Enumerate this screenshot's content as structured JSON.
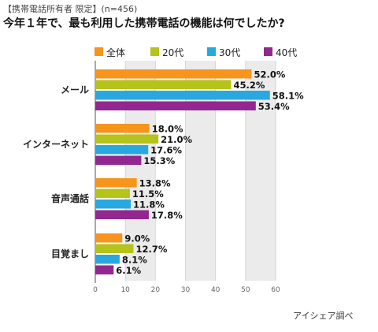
{
  "header": {
    "subtitle": "【携帯電話所有者 限定】(n=456)",
    "title": "今年１年で、最も利用した携帯電話の機能は何でしたか?"
  },
  "source": "アイシェア調べ",
  "colors": {
    "全体": "#f7941d",
    "20代": "#b5c31a",
    "30代": "#29a8e0",
    "40代": "#92278f",
    "band": "#ebebeb"
  },
  "chart_data": {
    "type": "bar",
    "orientation": "horizontal",
    "categories": [
      "メール",
      "インターネット",
      "音声通話",
      "目覚まし"
    ],
    "series": [
      {
        "name": "全体",
        "values": [
          52.0,
          18.0,
          13.8,
          9.0
        ]
      },
      {
        "name": "20代",
        "values": [
          45.2,
          21.0,
          11.5,
          12.7
        ]
      },
      {
        "name": "30代",
        "values": [
          58.1,
          17.6,
          11.8,
          8.1
        ]
      },
      {
        "name": "40代",
        "values": [
          53.4,
          15.3,
          17.8,
          6.1
        ]
      }
    ],
    "value_labels": [
      [
        "52.0%",
        "18.0%",
        "13.8%",
        "9.0%"
      ],
      [
        "45.2%",
        "21.0%",
        "11.5%",
        "12.7%"
      ],
      [
        "58.1%",
        "17.6%",
        "11.8%",
        "8.1%"
      ],
      [
        "53.4%",
        "15.3%",
        "17.8%",
        "6.1%"
      ]
    ],
    "xlim": [
      0,
      60
    ],
    "xticks": [
      "0",
      "10",
      "20",
      "30",
      "40",
      "50",
      "60"
    ],
    "legend_position": "top",
    "grid": "alternating vertical bands"
  }
}
